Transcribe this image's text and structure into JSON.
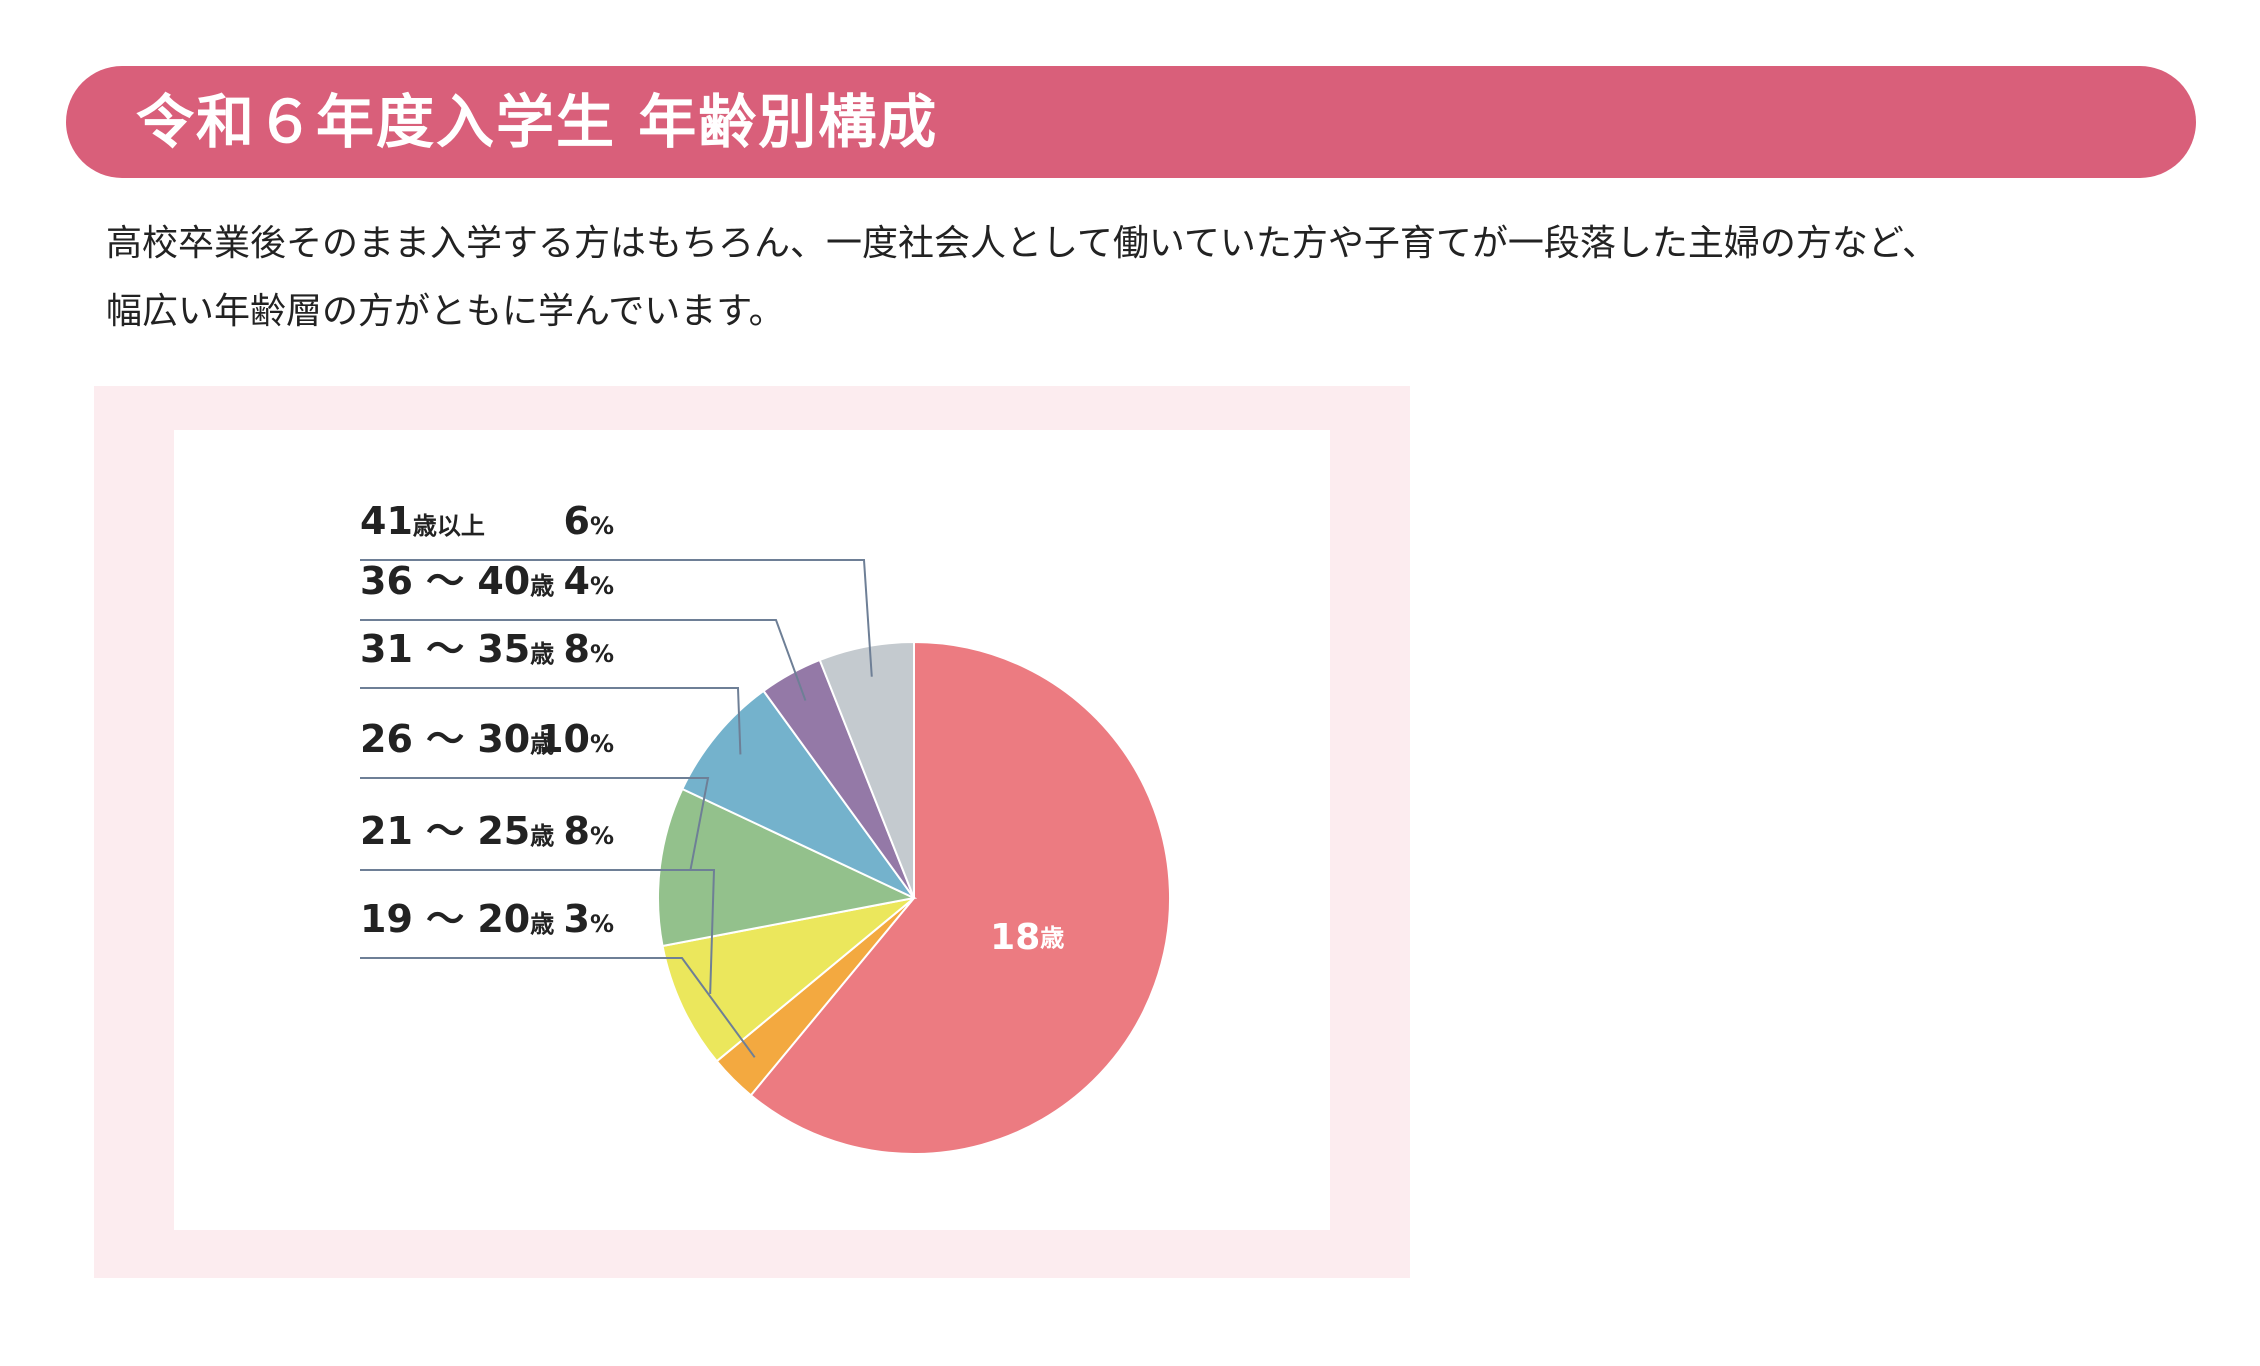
{
  "header": {
    "title": "令和６年度入学生 年齢別構成"
  },
  "intro": {
    "line1": "高校卒業後そのまま入学する方はもちろん、一度社会人として働いていた方や子育てが一段落した主婦の方など、",
    "line2": "幅広い年齢層の方がともに学んでいます。"
  },
  "colors": {
    "header": "#d95f7a",
    "panel": "#fcecef",
    "leader": "#6e7f96"
  },
  "chart_data": {
    "type": "pie",
    "unit": "%",
    "slices": [
      {
        "name": "18",
        "unit": "歳",
        "value": 61,
        "value_label": "",
        "color": "#ec7b81"
      },
      {
        "name": "19 ～ 20",
        "unit": "歳",
        "value": 3,
        "value_label": "3",
        "color": "#f3a940"
      },
      {
        "name": "21 ～ 25",
        "unit": "歳",
        "value": 8,
        "value_label": "8",
        "color": "#ebe75c"
      },
      {
        "name": "26 ～ 30",
        "unit": "歳",
        "value": 10,
        "value_label": "10",
        "color": "#93c18c"
      },
      {
        "name": "31 ～ 35",
        "unit": "歳",
        "value": 8,
        "value_label": "8",
        "color": "#74b2cc"
      },
      {
        "name": "36 ～ 40",
        "unit": "歳",
        "value": 4,
        "value_label": "4",
        "color": "#9479a7"
      },
      {
        "name": "41",
        "unit": "歳以上",
        "value": 6,
        "value_label": "6",
        "color": "#c4cacf"
      }
    ]
  }
}
